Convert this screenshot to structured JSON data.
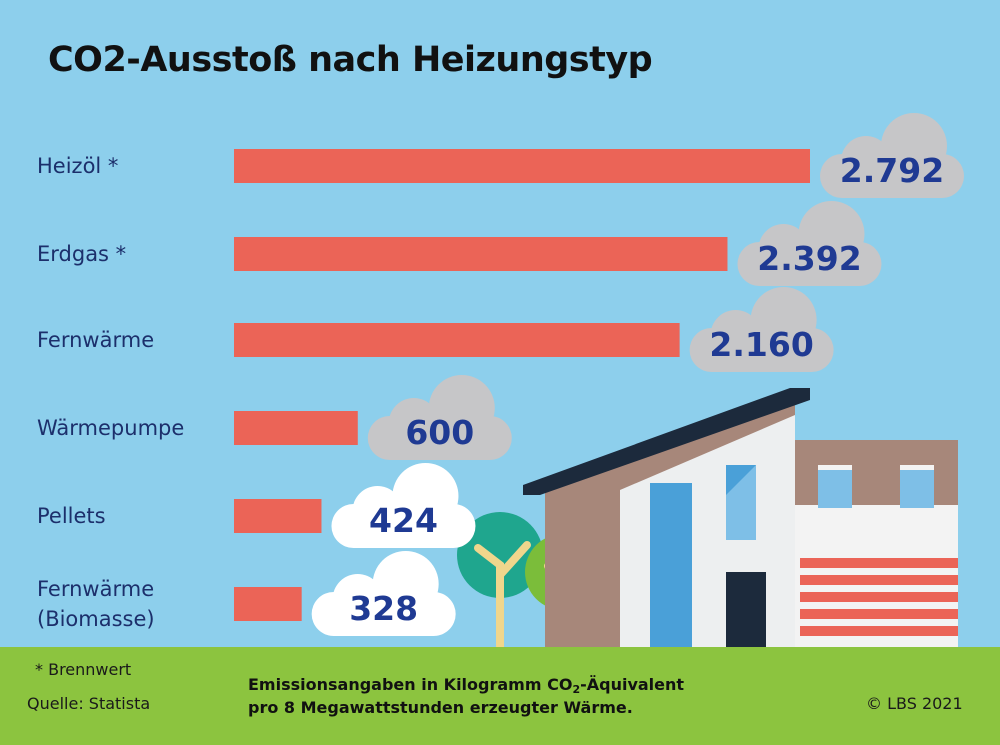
{
  "chart_data": {
    "type": "bar",
    "orientation": "horizontal",
    "title": "CO2-Ausstoß nach Heizungstyp",
    "categories": [
      "Heizöl *",
      "Erdgas *",
      "Fernwärme",
      "Wärmepumpe",
      "Pellets",
      "Fernwärme (Biomasse)"
    ],
    "category_lines": [
      [
        "Heizöl *"
      ],
      [
        "Erdgas *"
      ],
      [
        "Fernwärme"
      ],
      [
        "Wärmepumpe"
      ],
      [
        "Pellets"
      ],
      [
        "Fernwärme",
        "(Biomasse)"
      ]
    ],
    "values": [
      2792,
      2392,
      2160,
      600,
      424,
      328
    ],
    "value_labels": [
      "2.792",
      "2.392",
      "2.160",
      "600",
      "424",
      "328"
    ],
    "xlim": [
      0,
      2792
    ],
    "bar_color": "#eb6457",
    "label_colors": {
      "dark_cloud": "#c6c6c8",
      "light_cloud": "#ffffff",
      "value_text": "#1f3a93"
    },
    "grid": false,
    "legend": "none"
  },
  "footer": {
    "note": "* Brennwert",
    "source": "Quelle: Statista",
    "unit_line1_part1": "Emissionsangaben in Kilogramm CO",
    "unit_line1_sub": "2",
    "unit_line1_part2": "-Äquivalent",
    "unit_line2": "pro 8 Megawattstunden erzeugter Wärme.",
    "copyright": "© LBS 2021"
  },
  "colors": {
    "sky": "#8dcfec",
    "ground": "#8cc43f"
  }
}
